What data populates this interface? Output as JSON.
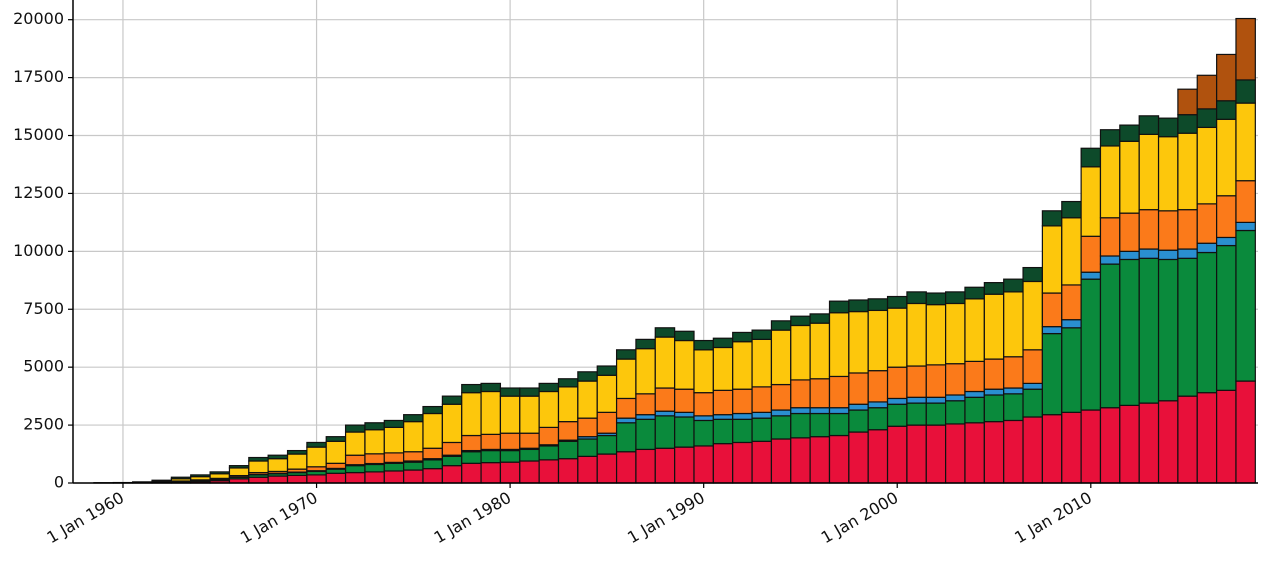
{
  "chart_data": {
    "type": "stacked_bar",
    "x": [
      "1958-01-01",
      "1959-01-01",
      "1960-01-01",
      "1961-01-01",
      "1962-01-01",
      "1963-01-01",
      "1964-01-01",
      "1965-01-01",
      "1966-01-01",
      "1967-01-01",
      "1968-01-01",
      "1969-01-01",
      "1970-01-01",
      "1971-01-01",
      "1972-01-01",
      "1973-01-01",
      "1974-01-01",
      "1975-01-01",
      "1976-01-01",
      "1977-01-01",
      "1978-01-01",
      "1979-01-01",
      "1980-01-01",
      "1981-01-01",
      "1982-01-01",
      "1983-01-01",
      "1984-01-01",
      "1985-01-01",
      "1986-01-01",
      "1987-01-01",
      "1988-01-01",
      "1989-01-01",
      "1990-01-01",
      "1991-01-01",
      "1992-01-01",
      "1993-01-01",
      "1994-01-01",
      "1995-01-01",
      "1996-01-01",
      "1997-01-01",
      "1998-01-01",
      "1999-01-01",
      "2000-01-01",
      "2001-01-01",
      "2002-01-01",
      "2003-01-01",
      "2004-01-01",
      "2005-01-01",
      "2006-01-01",
      "2007-01-01",
      "2008-01-01",
      "2009-01-01",
      "2010-01-01",
      "2011-01-01",
      "2012-01-01",
      "2013-01-01",
      "2014-01-01",
      "2015-01-01",
      "2016-01-01",
      "2017-01-01",
      "2018-01-01"
    ],
    "series": [
      {
        "color": "#e8103a",
        "values": [
          0,
          0,
          5,
          10,
          20,
          40,
          60,
          100,
          180,
          250,
          300,
          330,
          350,
          420,
          450,
          480,
          520,
          560,
          620,
          750,
          850,
          880,
          900,
          950,
          1000,
          1050,
          1150,
          1250,
          1350,
          1450,
          1500,
          1550,
          1600,
          1700,
          1750,
          1800,
          1900,
          1950,
          2000,
          2050,
          2200,
          2300,
          2450,
          2500,
          2500,
          2550,
          2600,
          2650,
          2700,
          2850,
          2950,
          3050,
          3150,
          3250,
          3350,
          3450,
          3550,
          3750,
          3900,
          4000,
          4400
        ]
      },
      {
        "color": "#0a8a3c",
        "values": [
          0,
          0,
          0,
          5,
          10,
          20,
          40,
          50,
          70,
          100,
          100,
          120,
          150,
          180,
          300,
          320,
          330,
          340,
          380,
          400,
          500,
          520,
          500,
          500,
          600,
          750,
          750,
          800,
          1250,
          1300,
          1400,
          1300,
          1100,
          1050,
          1000,
          1000,
          1000,
          1050,
          1000,
          950,
          950,
          950,
          950,
          950,
          950,
          1000,
          1100,
          1150,
          1150,
          1200,
          3500,
          3650,
          5650,
          6200,
          6300,
          6250,
          6100,
          5950,
          6050,
          6250,
          6500
        ]
      },
      {
        "color": "#2a8fd0",
        "values": [
          0,
          0,
          0,
          0,
          0,
          5,
          5,
          10,
          10,
          20,
          20,
          20,
          30,
          30,
          40,
          40,
          40,
          50,
          50,
          50,
          50,
          50,
          50,
          50,
          50,
          50,
          100,
          100,
          200,
          200,
          200,
          200,
          200,
          200,
          250,
          250,
          250,
          250,
          250,
          250,
          250,
          250,
          250,
          250,
          250,
          250,
          250,
          250,
          250,
          250,
          300,
          350,
          300,
          350,
          350,
          400,
          400,
          400,
          400,
          350,
          350
        ]
      },
      {
        "color": "#fb7a1a",
        "values": [
          0,
          0,
          0,
          0,
          10,
          20,
          30,
          40,
          60,
          80,
          80,
          130,
          170,
          220,
          410,
          420,
          410,
          400,
          450,
          550,
          650,
          650,
          700,
          650,
          750,
          800,
          800,
          900,
          850,
          900,
          1000,
          1000,
          1000,
          1050,
          1050,
          1100,
          1100,
          1200,
          1250,
          1350,
          1350,
          1350,
          1350,
          1350,
          1400,
          1350,
          1300,
          1300,
          1350,
          1450,
          1450,
          1500,
          1550,
          1650,
          1650,
          1700,
          1700,
          1700,
          1700,
          1800,
          1800
        ]
      },
      {
        "color": "#fdc70c",
        "values": [
          0,
          5,
          10,
          20,
          40,
          100,
          140,
          200,
          330,
          500,
          550,
          650,
          850,
          950,
          1000,
          1040,
          1100,
          1300,
          1500,
          1650,
          1850,
          1850,
          1600,
          1600,
          1550,
          1500,
          1600,
          1600,
          1700,
          1950,
          2200,
          2100,
          1850,
          1850,
          2050,
          2050,
          2350,
          2350,
          2400,
          2750,
          2650,
          2600,
          2550,
          2700,
          2600,
          2600,
          2700,
          2800,
          2800,
          2950,
          2900,
          2900,
          3000,
          3100,
          3100,
          3250,
          3200,
          3300,
          3300,
          3300,
          3350
        ]
      },
      {
        "color": "#0d4a2a",
        "values": [
          0,
          5,
          5,
          15,
          40,
          65,
          75,
          80,
          100,
          150,
          150,
          150,
          200,
          200,
          300,
          300,
          300,
          300,
          300,
          350,
          350,
          350,
          350,
          350,
          350,
          350,
          400,
          400,
          400,
          400,
          400,
          400,
          400,
          400,
          400,
          400,
          400,
          400,
          400,
          500,
          500,
          500,
          500,
          500,
          500,
          500,
          500,
          500,
          550,
          600,
          650,
          700,
          800,
          700,
          700,
          800,
          800,
          800,
          800,
          800,
          1000
        ]
      },
      {
        "color": "#b0520e",
        "values": [
          0,
          0,
          0,
          0,
          0,
          0,
          0,
          0,
          0,
          0,
          0,
          0,
          0,
          0,
          0,
          0,
          0,
          0,
          0,
          0,
          0,
          0,
          0,
          0,
          0,
          0,
          0,
          0,
          0,
          0,
          0,
          0,
          0,
          0,
          0,
          0,
          0,
          0,
          0,
          0,
          0,
          0,
          0,
          0,
          0,
          0,
          0,
          0,
          0,
          0,
          0,
          0,
          0,
          0,
          0,
          0,
          0,
          1100,
          1450,
          2000,
          2650
        ]
      }
    ],
    "xlim": [
      "1957-06-02",
      "2018-08-22"
    ],
    "xticks": [
      {
        "value": "1960-01-01",
        "label": "1 Jan 1960"
      },
      {
        "value": "1970-01-01",
        "label": "1 Jan 1970"
      },
      {
        "value": "1980-01-01",
        "label": "1 Jan 1980"
      },
      {
        "value": "1990-01-01",
        "label": "1 Jan 1990"
      },
      {
        "value": "2000-01-01",
        "label": "1 Jan 2000"
      },
      {
        "value": "2010-01-01",
        "label": "1 Jan 2010"
      }
    ],
    "ylim": [
      0,
      20850
    ],
    "yticks": [
      0,
      2500,
      5000,
      7500,
      10000,
      12500,
      15000,
      17500,
      20000
    ],
    "grid": true
  }
}
